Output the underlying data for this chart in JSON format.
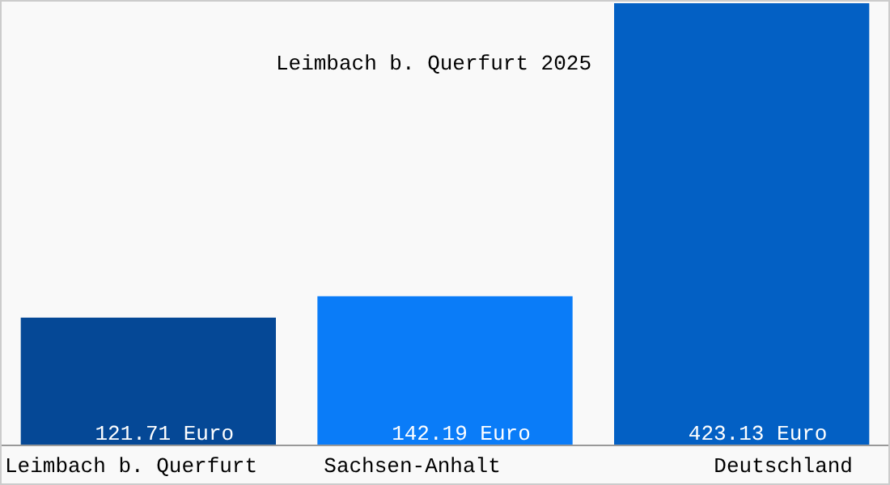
{
  "chart_data": {
    "type": "bar",
    "title": "Leimbach b. Querfurt 2025",
    "categories": [
      "Leimbach b. Querfurt",
      "Sachsen-Anhalt",
      "Deutschland"
    ],
    "values": [
      121.71,
      142.19,
      423.13
    ],
    "colors": [
      "#054896",
      "#0a7cf8",
      "#0360c4"
    ],
    "value_labels": [
      "121.71 Euro",
      "142.19 Euro",
      "423.13 Euro"
    ]
  }
}
